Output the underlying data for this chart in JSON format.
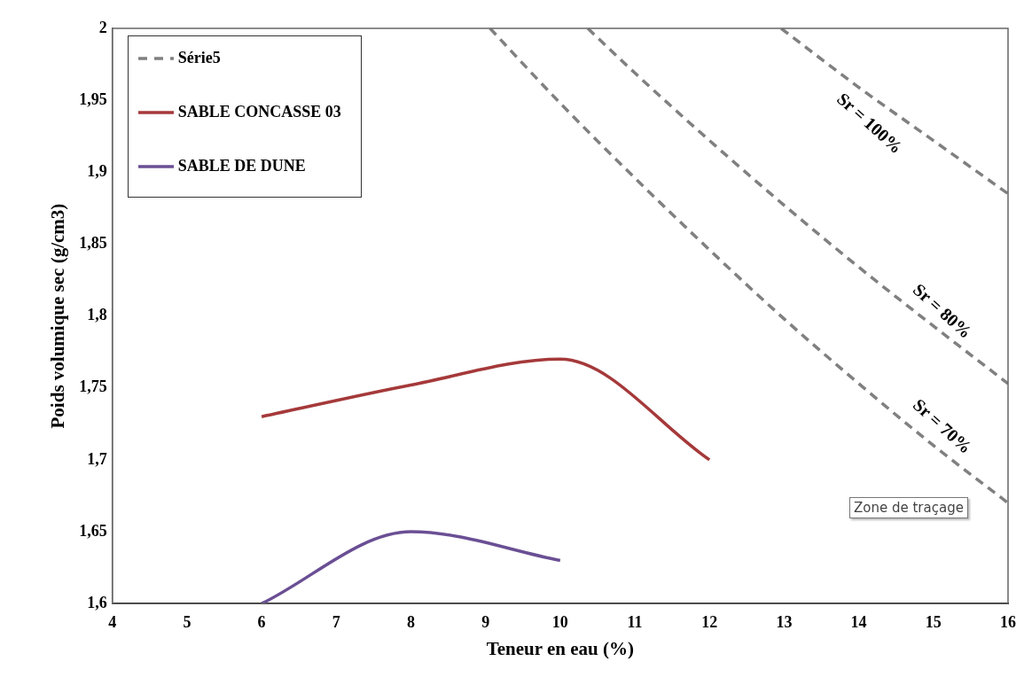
{
  "chart_data": {
    "type": "line",
    "xlabel": "Teneur en eau (%)",
    "ylabel": "Poids volumique sec (g/cm3)",
    "xlim": [
      4,
      16
    ],
    "xticks": [
      4,
      5,
      6,
      7,
      8,
      9,
      10,
      11,
      12,
      13,
      14,
      15,
      16
    ],
    "ylim": [
      1.6,
      2
    ],
    "yticks": [
      {
        "value": 1.6,
        "label": "1,6"
      },
      {
        "value": 1.65,
        "label": "1,65"
      },
      {
        "value": 1.7,
        "label": "1,7"
      },
      {
        "value": 1.75,
        "label": "1,75"
      },
      {
        "value": 1.8,
        "label": "1,8"
      },
      {
        "value": 1.85,
        "label": "1,85"
      },
      {
        "value": 1.9,
        "label": "1,9"
      },
      {
        "value": 1.95,
        "label": "1,95"
      },
      2
    ],
    "grid": false,
    "legend": "top left",
    "marker": "none",
    "series": [
      {
        "name": "Série5",
        "color": "#808080",
        "line_style": "dashed",
        "x": [
          9.06,
          10,
          11,
          12,
          13,
          14,
          15,
          16
        ],
        "values": [
          2.0,
          1.948,
          1.896,
          1.846,
          1.798,
          1.753,
          1.71,
          1.67
        ]
      },
      {
        "color": "#808080",
        "line_style": "dashed",
        "x": [
          10.37,
          11,
          12,
          13,
          14,
          15,
          16
        ],
        "values": [
          2.0,
          1.969,
          1.922,
          1.877,
          1.834,
          1.793,
          1.753
        ]
      },
      {
        "color": "#808080",
        "line_style": "dashed",
        "x": [
          12.96,
          14,
          15,
          16
        ],
        "values": [
          2.0,
          1.959,
          1.922,
          1.885
        ]
      },
      {
        "name": "SABLE CONCASSE 03",
        "color": "#a5393a",
        "line_style": "solid",
        "x": [
          6,
          8,
          10,
          12
        ],
        "values": [
          1.73,
          1.752,
          1.77,
          1.7
        ]
      },
      {
        "name": "SABLE DE DUNE",
        "color": "#6a4f94",
        "line_style": "solid",
        "x": [
          6,
          8,
          10
        ],
        "values": [
          1.6,
          1.65,
          1.63
        ]
      }
    ],
    "annotations": [
      "Sr = 100%",
      "Sr = 80%",
      "Sr = 70%",
      "Zone de traçage"
    ]
  }
}
